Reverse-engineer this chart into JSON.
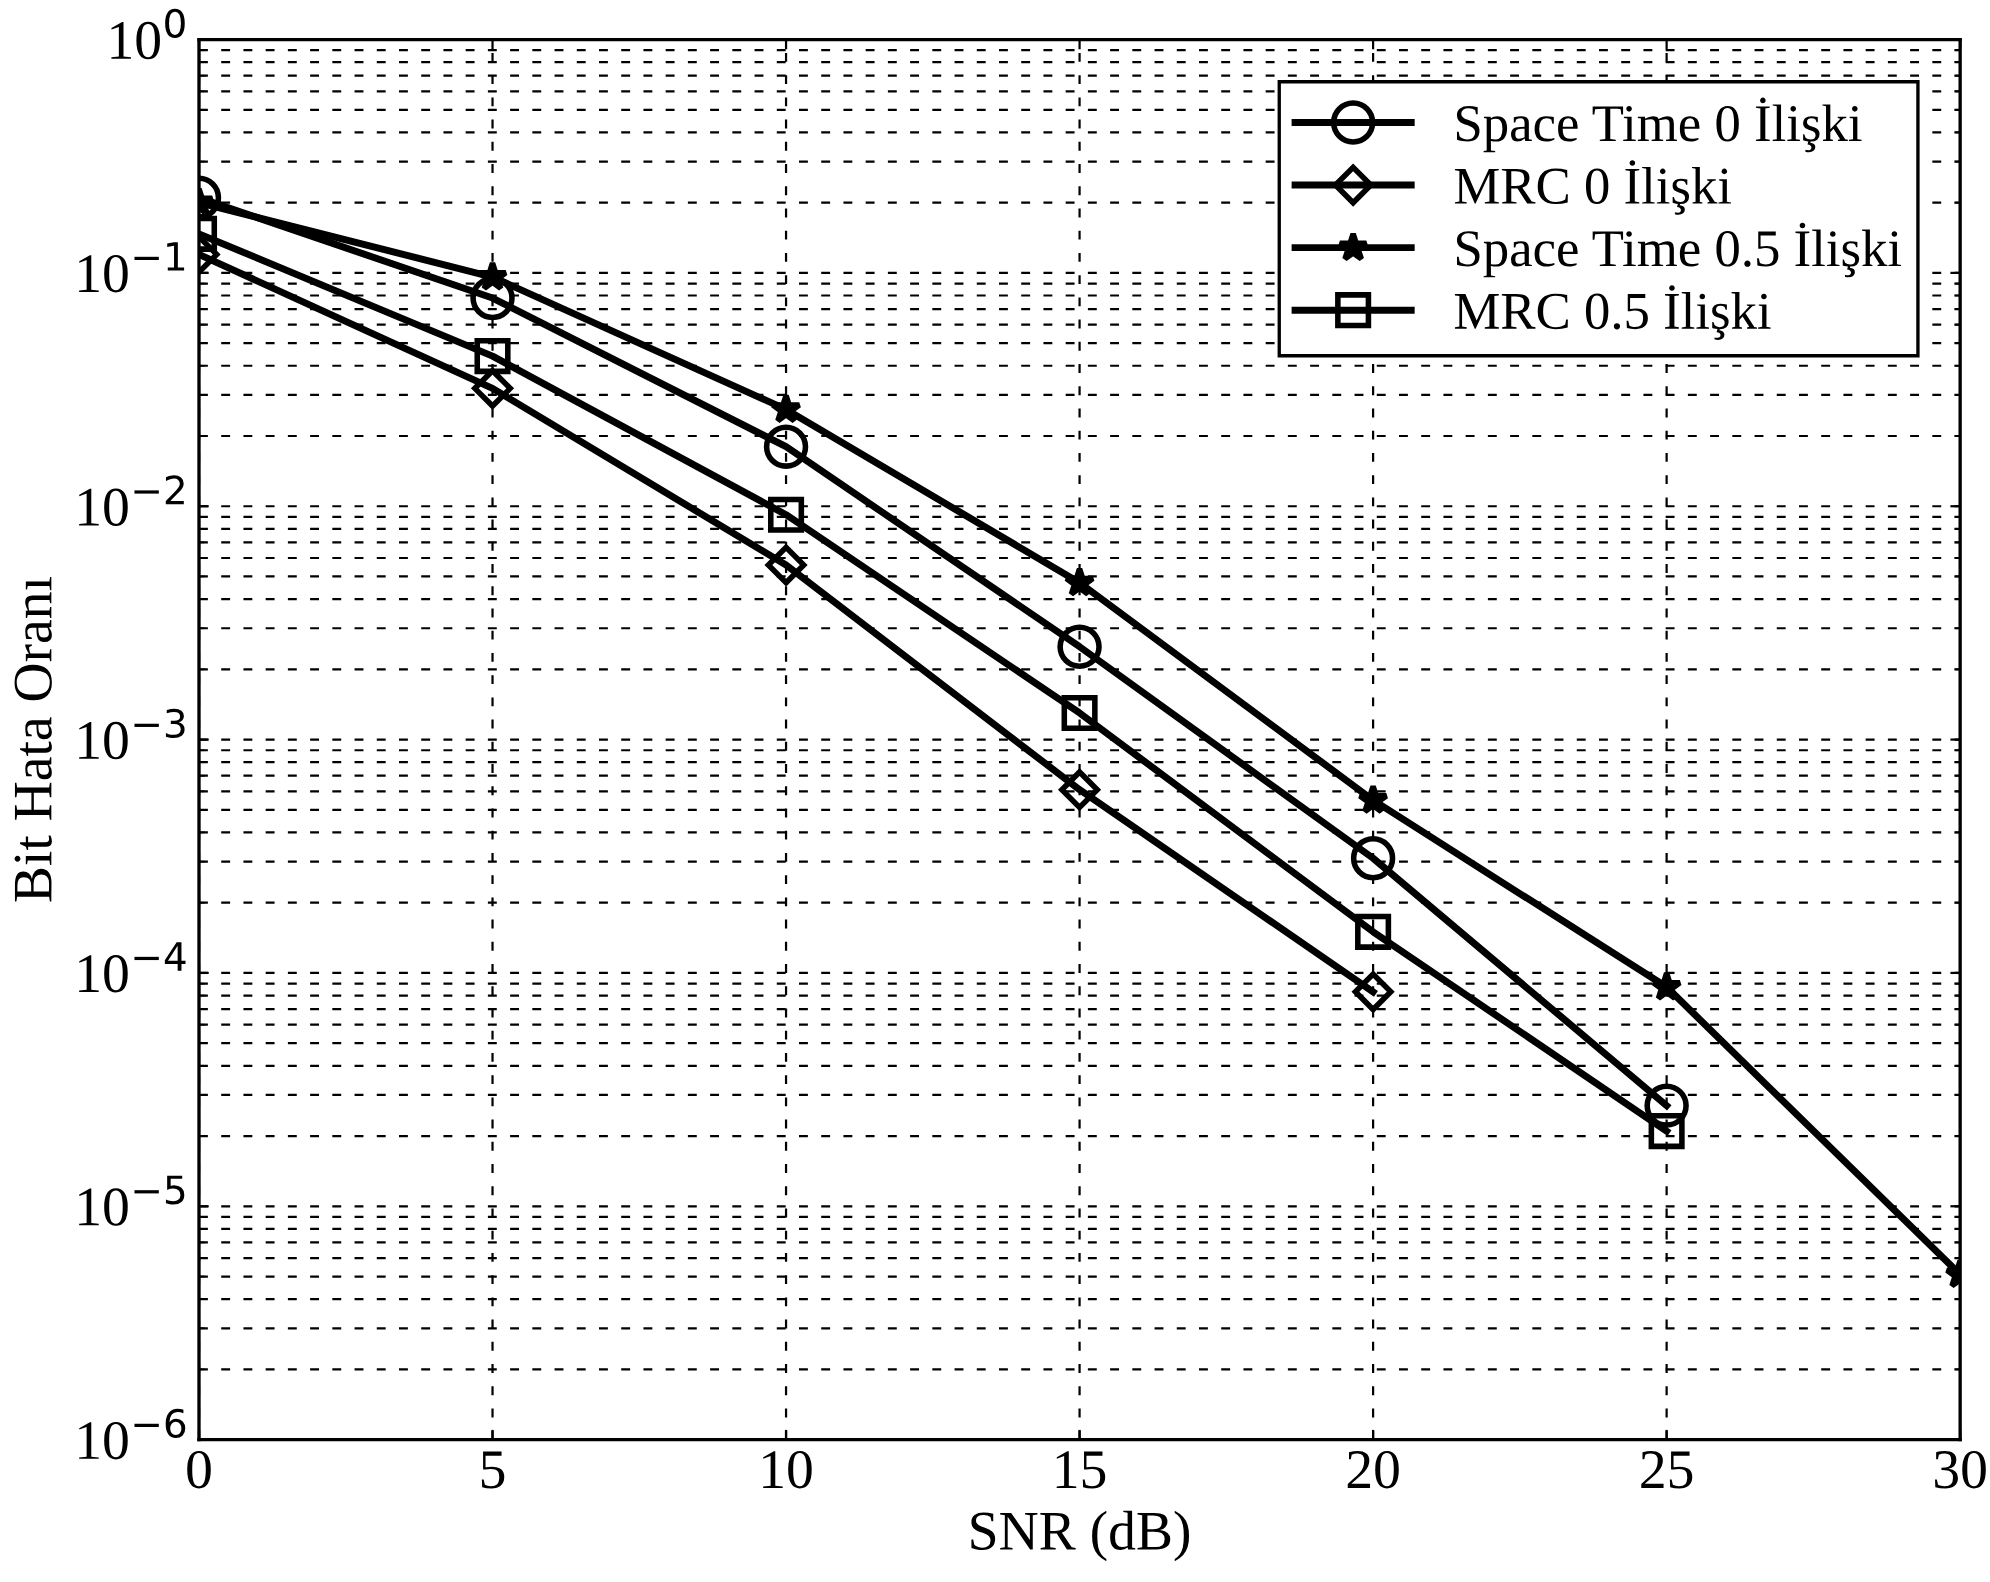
{
  "chart_data": {
    "type": "line",
    "xlabel": "SNR (dB)",
    "ylabel": "Bit Hata Oranı",
    "log": "y",
    "grid": true,
    "legend": "top right",
    "xlim": [
      0,
      30
    ],
    "xticks": [
      0,
      5,
      10,
      15,
      20,
      25,
      30
    ],
    "ylim": [
      1e-06,
      1
    ],
    "yticks": [
      {
        "value": 1e-06,
        "label": "10$^{−6}$"
      },
      {
        "value": 1e-05,
        "label": "10$^{−5}$"
      },
      {
        "value": 0.0001,
        "label": "10$^{−4}$"
      },
      {
        "value": 0.001,
        "label": "10$^{−3}$"
      },
      {
        "value": 0.01,
        "label": "10$^{−2}$"
      },
      {
        "value": 0.1,
        "label": "10$^{−1}$"
      },
      {
        "value": 1,
        "label": "10$^{0}$"
      }
    ],
    "series": [
      {
        "name": "Space Time 0 İlişki",
        "color": "#000000",
        "marker": "circle",
        "x": [
          0,
          5,
          10,
          15,
          20,
          25
        ],
        "values": [
          0.21,
          0.078,
          0.018,
          0.0025,
          0.00031,
          2.7e-05
        ]
      },
      {
        "name": "MRC 0 İlişki",
        "color": "#000000",
        "marker": "diamond",
        "x": [
          0,
          5,
          10,
          15,
          20
        ],
        "values": [
          0.12,
          0.032,
          0.0056,
          0.00061,
          8.3e-05
        ]
      },
      {
        "name": "Space Time 0.5 İlişki",
        "color": "#000000",
        "marker": "star",
        "x": [
          0,
          5,
          10,
          15,
          20,
          25,
          30
        ],
        "values": [
          0.2,
          0.096,
          0.026,
          0.0047,
          0.00055,
          8.7e-05,
          5.1e-06
        ]
      },
      {
        "name": "MRC 0.5 İlişki",
        "color": "#000000",
        "marker": "square",
        "x": [
          0,
          5,
          10,
          15,
          20,
          25
        ],
        "values": [
          0.147,
          0.044,
          0.0092,
          0.0013,
          0.00015,
          2.1e-05
        ]
      }
    ]
  }
}
